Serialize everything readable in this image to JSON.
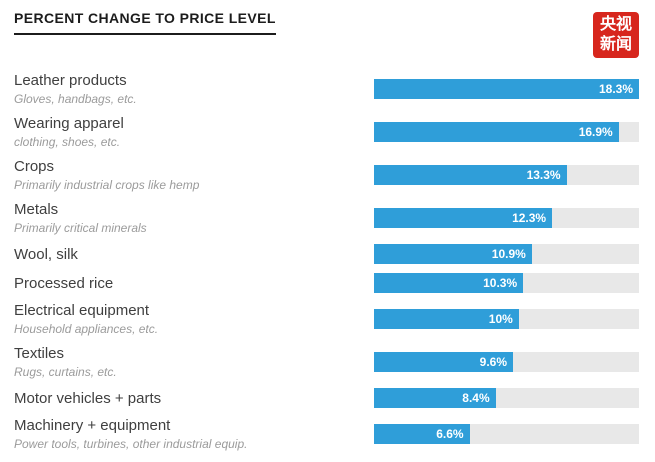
{
  "header": {
    "title": "PERCENT CHANGE TO PRICE LEVEL"
  },
  "logo": {
    "line1": "央视",
    "line2": "新闻",
    "bg_color": "#d7261d",
    "text_color": "#ffffff"
  },
  "chart_data": {
    "type": "bar",
    "orientation": "horizontal",
    "title": "PERCENT CHANGE TO PRICE LEVEL",
    "value_unit": "%",
    "axis_max": 18.3,
    "bar_color": "#2f9ed9",
    "track_color": "#e8e8e8",
    "items": [
      {
        "label": "Leather products",
        "sublabel": "Gloves, handbags, etc.",
        "value": 18.3,
        "display": "18.3%"
      },
      {
        "label": "Wearing apparel",
        "sublabel": "clothing, shoes, etc.",
        "value": 16.9,
        "display": "16.9%"
      },
      {
        "label": "Crops",
        "sublabel": "Primarily industrial crops like hemp",
        "value": 13.3,
        "display": "13.3%"
      },
      {
        "label": "Metals",
        "sublabel": "Primarily critical minerals",
        "value": 12.3,
        "display": "12.3%"
      },
      {
        "label": "Wool, silk",
        "sublabel": "",
        "value": 10.9,
        "display": "10.9%"
      },
      {
        "label": "Processed rice",
        "sublabel": "",
        "value": 10.3,
        "display": "10.3%"
      },
      {
        "label": "Electrical equipment",
        "sublabel": "Household appliances, etc.",
        "value": 10.0,
        "display": "10%"
      },
      {
        "label": "Textiles",
        "sublabel": "Rugs, curtains, etc.",
        "value": 9.6,
        "display": "9.6%"
      },
      {
        "label": "Motor vehicles + parts",
        "sublabel": "",
        "value": 8.4,
        "display": "8.4%"
      },
      {
        "label": "Machinery + equipment",
        "sublabel": "Power tools, turbines, other industrial equip.",
        "value": 6.6,
        "display": "6.6%"
      }
    ]
  }
}
